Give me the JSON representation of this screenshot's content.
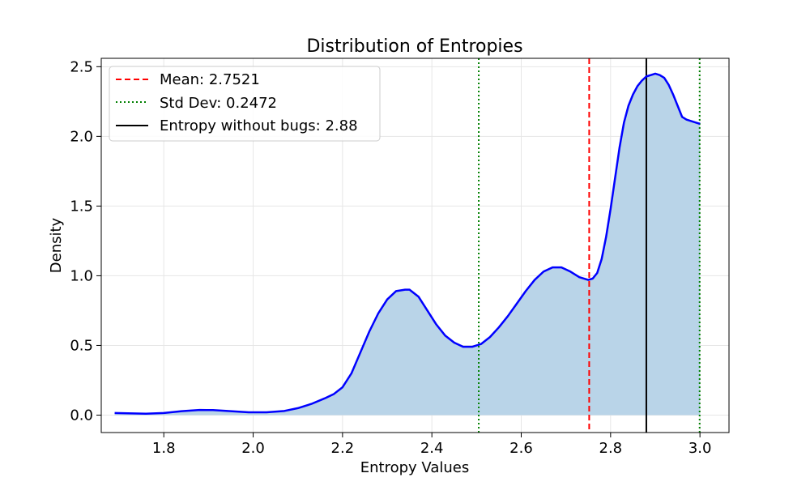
{
  "chart_data": {
    "type": "area",
    "title": "Distribution of Entropies",
    "xlabel": "Entropy Values",
    "ylabel": "Density",
    "xlim": [
      1.66,
      3.065
    ],
    "ylim": [
      -0.125,
      2.56
    ],
    "xticks": [
      1.8,
      2.0,
      2.2,
      2.4,
      2.6,
      2.8,
      3.0
    ],
    "xtick_labels": [
      "1.8",
      "2.0",
      "2.2",
      "2.4",
      "2.6",
      "2.8",
      "3.0"
    ],
    "yticks": [
      0.0,
      0.5,
      1.0,
      1.5,
      2.0,
      2.5
    ],
    "ytick_labels": [
      "0.0",
      "0.5",
      "1.0",
      "1.5",
      "2.0",
      "2.5"
    ],
    "grid": true,
    "legend_position": "upper-left",
    "series": [
      {
        "kind": "density",
        "color": "#0000ff",
        "fill_color": "#b9d4e8",
        "x": [
          1.69,
          1.72,
          1.76,
          1.8,
          1.84,
          1.88,
          1.91,
          1.95,
          1.99,
          2.03,
          2.07,
          2.1,
          2.13,
          2.16,
          2.18,
          2.2,
          2.22,
          2.24,
          2.26,
          2.28,
          2.3,
          2.32,
          2.34,
          2.35,
          2.37,
          2.39,
          2.41,
          2.43,
          2.45,
          2.47,
          2.49,
          2.51,
          2.53,
          2.55,
          2.57,
          2.59,
          2.61,
          2.63,
          2.65,
          2.67,
          2.69,
          2.71,
          2.73,
          2.75,
          2.76,
          2.77,
          2.78,
          2.79,
          2.8,
          2.81,
          2.82,
          2.83,
          2.84,
          2.85,
          2.86,
          2.87,
          2.88,
          2.89,
          2.9,
          2.91,
          2.92,
          2.93,
          2.94,
          2.95,
          2.96,
          2.97,
          2.98,
          2.99,
          3.0
        ],
        "y": [
          0.015,
          0.013,
          0.01,
          0.015,
          0.028,
          0.037,
          0.036,
          0.028,
          0.02,
          0.02,
          0.03,
          0.05,
          0.08,
          0.12,
          0.15,
          0.2,
          0.3,
          0.45,
          0.6,
          0.73,
          0.83,
          0.89,
          0.9,
          0.9,
          0.85,
          0.75,
          0.65,
          0.57,
          0.52,
          0.49,
          0.49,
          0.51,
          0.56,
          0.63,
          0.71,
          0.8,
          0.89,
          0.97,
          1.03,
          1.06,
          1.06,
          1.03,
          0.99,
          0.97,
          0.98,
          1.02,
          1.12,
          1.28,
          1.48,
          1.7,
          1.92,
          2.1,
          2.22,
          2.3,
          2.36,
          2.4,
          2.43,
          2.44,
          2.45,
          2.44,
          2.42,
          2.37,
          2.3,
          2.22,
          2.14,
          2.12,
          2.11,
          2.1,
          2.09
        ]
      }
    ],
    "vlines": [
      {
        "name": "Mean: 2.7521",
        "x": 2.7521,
        "color": "#ff0000",
        "style": "dashed"
      },
      {
        "name": "Std Dev: 0.2472",
        "x": 2.5049,
        "color": "#008000",
        "style": "dotted"
      },
      {
        "x": 2.9993,
        "color": "#008000",
        "style": "dotted"
      },
      {
        "name": "Entropy without bugs: 2.88",
        "x": 2.88,
        "color": "#000000",
        "style": "solid"
      }
    ],
    "legend": [
      {
        "label": "Mean: 2.7521",
        "color": "#ff0000",
        "style": "dashed"
      },
      {
        "label": "Std Dev: 0.2472",
        "color": "#008000",
        "style": "dotted"
      },
      {
        "label": "Entropy without bugs: 2.88",
        "color": "#000000",
        "style": "solid"
      }
    ]
  }
}
